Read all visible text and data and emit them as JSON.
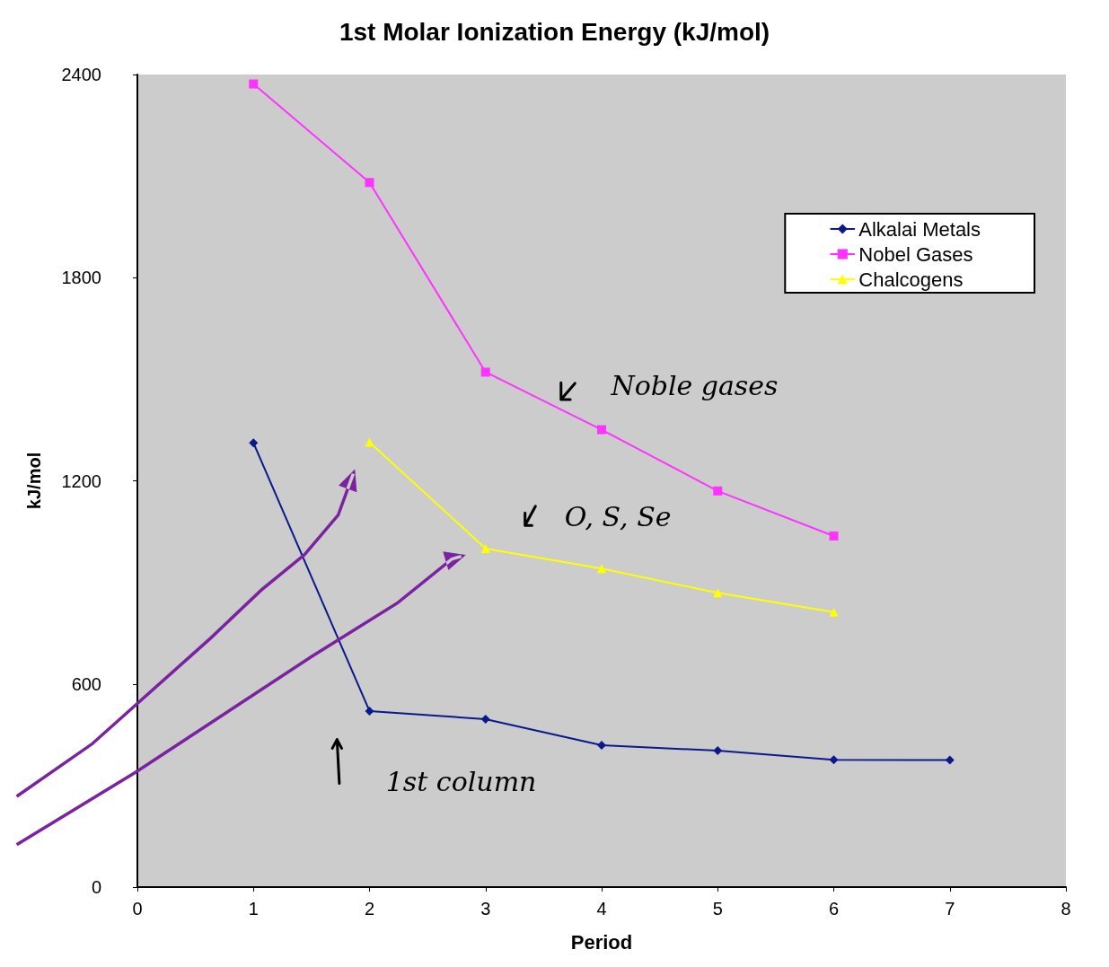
{
  "chart_data": {
    "type": "line",
    "title": "1st Molar Ionization Energy (kJ/mol)",
    "xlabel": "Period",
    "ylabel": "kJ/mol",
    "xlim": [
      0,
      8
    ],
    "xticks": [
      0,
      1,
      2,
      3,
      4,
      5,
      6,
      7,
      8
    ],
    "ylim": [
      0,
      2400
    ],
    "yticks": [
      0,
      600,
      1200,
      1800,
      2400
    ],
    "grid": false,
    "legend": "top right",
    "series": [
      {
        "name": "Alkalai Metals",
        "color": "#0a1a8c",
        "marker": "diamond",
        "x": [
          1,
          2,
          3,
          4,
          5,
          6,
          7
        ],
        "values": [
          1312,
          520,
          496,
          419,
          403,
          376,
          375
        ]
      },
      {
        "name": "Nobel Gases",
        "color": "#ff33ff",
        "marker": "square",
        "x": [
          1,
          2,
          3,
          4,
          5,
          6
        ],
        "values": [
          2372,
          2081,
          1521,
          1351,
          1170,
          1037
        ]
      },
      {
        "name": "Chalcogens",
        "color": "#ffff00",
        "marker": "triangle",
        "x": [
          2,
          3,
          4,
          5,
          6
        ],
        "values": [
          1314,
          1000,
          941,
          869,
          812
        ]
      }
    ],
    "annotations": [
      "Noble gases",
      "O, S, Se",
      "1st column"
    ]
  }
}
